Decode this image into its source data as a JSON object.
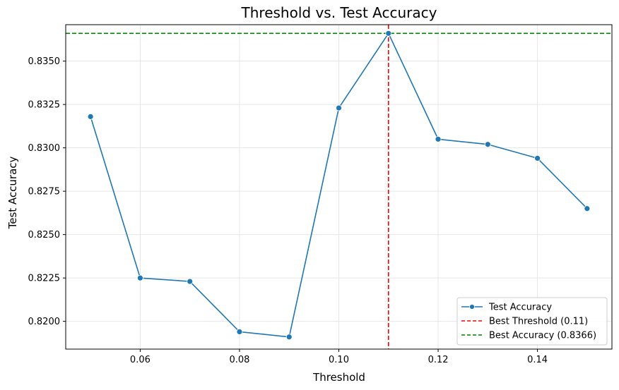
{
  "chart_data": {
    "type": "line",
    "title": "Threshold vs. Test Accuracy",
    "xlabel": "Threshold",
    "ylabel": "Test Accuracy",
    "xlim": [
      0.045,
      0.155
    ],
    "ylim": [
      0.8184,
      0.8371
    ],
    "xticks": [
      0.06,
      0.08,
      0.1,
      0.12,
      0.14
    ],
    "xtick_labels": [
      "0.06",
      "0.08",
      "0.10",
      "0.12",
      "0.14"
    ],
    "yticks": [
      0.82,
      0.8225,
      0.825,
      0.8275,
      0.83,
      0.8325,
      0.835
    ],
    "ytick_labels": [
      "0.8200",
      "0.8225",
      "0.8250",
      "0.8275",
      "0.8300",
      "0.8325",
      "0.8350"
    ],
    "grid": true,
    "legend_position": "bottom-right",
    "series": [
      {
        "name": "Test Accuracy",
        "color": "#1f77b4",
        "x": [
          0.05,
          0.06,
          0.07,
          0.08,
          0.09,
          0.1,
          0.11,
          0.12,
          0.13,
          0.14,
          0.15
        ],
        "values": [
          0.8318,
          0.8225,
          0.8223,
          0.8194,
          0.8191,
          0.8323,
          0.8366,
          0.8305,
          0.8302,
          0.8294,
          0.8265
        ]
      }
    ],
    "reference_lines": [
      {
        "name": "Best Threshold (0.11)",
        "orientation": "vertical",
        "value": 0.11,
        "color": "#ff0000",
        "style": "dashed"
      },
      {
        "name": "Best Accuracy (0.8366)",
        "orientation": "horizontal",
        "value": 0.8366,
        "color": "#008000",
        "style": "dashed"
      }
    ]
  }
}
